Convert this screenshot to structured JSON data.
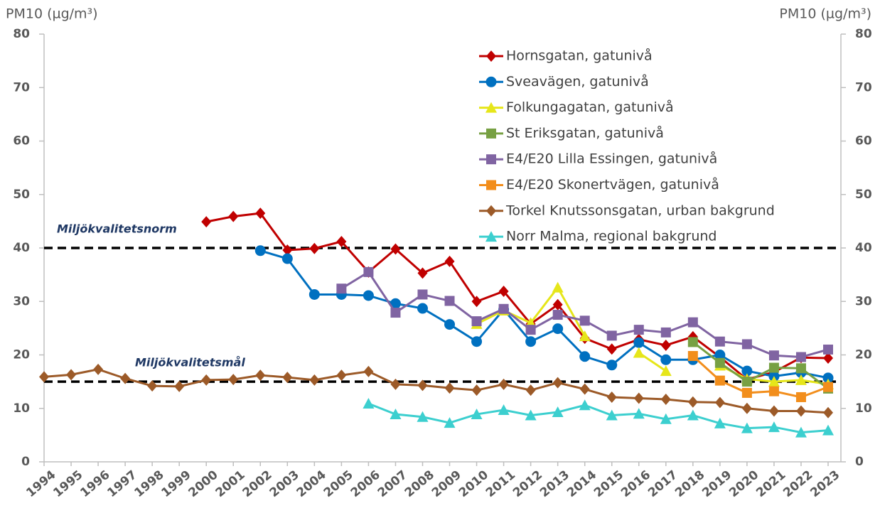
{
  "chart_data": {
    "type": "line",
    "y_label": "PM10 (µg/m³)",
    "y2_label": "PM10 (µg/m³)",
    "categories": [
      "1994",
      "1995",
      "1996",
      "1997",
      "1998",
      "1999",
      "2000",
      "2001",
      "2002",
      "2003",
      "2004",
      "2005",
      "2006",
      "2007",
      "2008",
      "2009",
      "2010",
      "2011",
      "2012",
      "2013",
      "2014",
      "2015",
      "2016",
      "2017",
      "2018",
      "2019",
      "2020",
      "2021",
      "2022",
      "2023"
    ],
    "ylim": [
      0,
      80
    ],
    "yticks": [
      0,
      10,
      20,
      30,
      40,
      50,
      60,
      70,
      80
    ],
    "y2lim": [
      0,
      80
    ],
    "y2ticks": [
      0,
      10,
      20,
      30,
      40,
      50,
      60,
      70,
      80
    ],
    "grid": false,
    "legend": "top-right",
    "reference_lines": [
      {
        "value": 40,
        "label": "Miljökvalitetsnorm"
      },
      {
        "value": 15,
        "label": "Miljökvalitetsmål"
      }
    ],
    "series": [
      {
        "name": "Hornsgatan, gatunivå",
        "color": "#c00000",
        "marker": "diamond",
        "values": [
          null,
          null,
          null,
          null,
          null,
          null,
          44.9,
          45.9,
          46.5,
          39.6,
          39.9,
          41.2,
          35.5,
          39.8,
          35.3,
          37.5,
          30,
          31.9,
          25.8,
          29.4,
          23.1,
          21.1,
          22.9,
          21.8,
          23.4,
          19.6,
          15.4,
          16.8,
          19.5,
          19.4
        ]
      },
      {
        "name": "Sveavägen, gatunivå",
        "color": "#0070c0",
        "marker": "circle",
        "values": [
          null,
          null,
          null,
          null,
          null,
          null,
          null,
          null,
          39.5,
          38,
          31.3,
          31.3,
          31.1,
          29.6,
          28.7,
          25.7,
          22.5,
          28.5,
          22.5,
          24.9,
          19.7,
          18.1,
          22.3,
          19.1,
          19.1,
          20,
          17,
          16,
          16.7,
          15.7
        ]
      },
      {
        "name": "Folkungagatan, gatunivå",
        "color": "#e6e61a",
        "marker": "triangle",
        "values": [
          null,
          null,
          null,
          null,
          null,
          null,
          null,
          null,
          null,
          null,
          null,
          null,
          null,
          null,
          null,
          null,
          25.8,
          28.3,
          26,
          32.6,
          23.5,
          null,
          20.4,
          17,
          null,
          18,
          15.5,
          15,
          15.3,
          14.5
        ]
      },
      {
        "name": "St Eriksgatan, gatunivå",
        "color": "#77a043",
        "marker": "square",
        "values": [
          null,
          null,
          null,
          null,
          null,
          null,
          null,
          null,
          null,
          null,
          null,
          null,
          null,
          null,
          null,
          null,
          null,
          null,
          null,
          null,
          null,
          null,
          null,
          null,
          22.4,
          18.5,
          15,
          17.6,
          17.5,
          13.7
        ]
      },
      {
        "name": "E4/E20 Lilla Essingen, gatunivå",
        "color": "#8064a2",
        "marker": "square",
        "values": [
          null,
          null,
          null,
          null,
          null,
          null,
          null,
          null,
          null,
          null,
          null,
          32.4,
          35.5,
          27.9,
          31.3,
          30.1,
          26.3,
          28.6,
          24.7,
          27.5,
          26.4,
          23.6,
          24.7,
          24.2,
          26.1,
          22.5,
          22,
          19.9,
          19.6,
          21
        ]
      },
      {
        "name": "E4/E20 Skonertvägen, gatunivå",
        "color": "#f28e1c",
        "marker": "square",
        "values": [
          null,
          null,
          null,
          null,
          null,
          null,
          null,
          null,
          null,
          null,
          null,
          null,
          null,
          null,
          null,
          null,
          null,
          null,
          null,
          null,
          null,
          null,
          null,
          null,
          19.8,
          15.2,
          12.9,
          13.2,
          12.1,
          14
        ]
      },
      {
        "name": "Torkel Knutssonsgatan, urban bakgrund",
        "color": "#9c5a28",
        "marker": "diamond",
        "values": [
          15.9,
          16.3,
          17.3,
          15.6,
          14.2,
          14.1,
          15.3,
          15.4,
          16.2,
          15.8,
          15.3,
          16.2,
          16.9,
          14.5,
          14.3,
          13.8,
          13.4,
          14.5,
          13.4,
          14.8,
          13.6,
          12.1,
          11.9,
          11.7,
          11.2,
          11.1,
          10,
          9.5,
          9.5,
          9.2
        ]
      },
      {
        "name": "Norr Malma, regional bakgrund",
        "color": "#3ccfcf",
        "marker": "triangle",
        "values": [
          null,
          null,
          null,
          null,
          null,
          null,
          null,
          null,
          null,
          null,
          null,
          null,
          10.9,
          8.9,
          8.4,
          7.3,
          8.9,
          9.7,
          8.7,
          9.3,
          10.6,
          8.7,
          9,
          8,
          8.7,
          7.2,
          6.3,
          6.5,
          5.5,
          5.9
        ]
      }
    ]
  }
}
